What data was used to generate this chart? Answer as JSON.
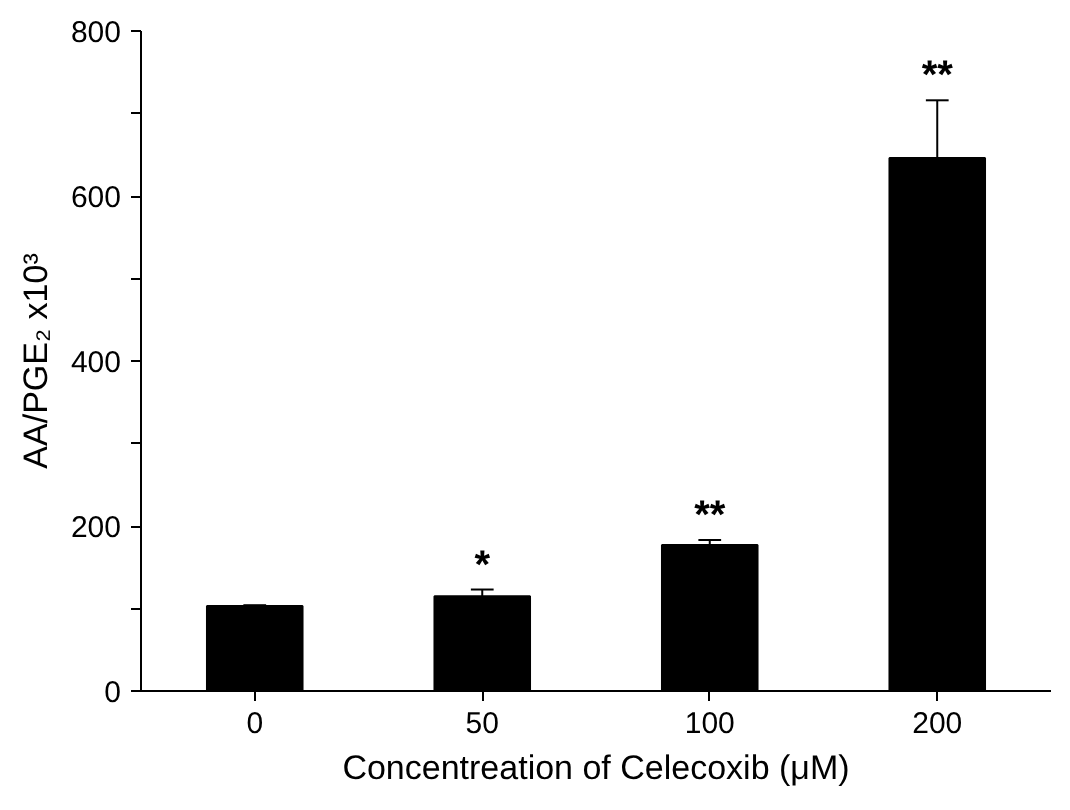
{
  "chart_data": {
    "type": "bar",
    "xlabel": "Concentreation of Celecoxib (μM)",
    "ylabel": "AA/PGE₂ x10³",
    "categories": [
      "0",
      "50",
      "100",
      "200"
    ],
    "values": [
      103,
      115,
      177,
      646
    ],
    "errors": [
      [
        103,
        104
      ],
      [
        115,
        123
      ],
      [
        177,
        183
      ],
      [
        646,
        716
      ]
    ],
    "color": "#000000",
    "ylim": [
      0,
      800
    ],
    "yticks": [
      0,
      {
        "value": 100,
        "label": null
      },
      200,
      {
        "value": 300,
        "label": null
      },
      400,
      {
        "value": 500,
        "label": null
      },
      600,
      {
        "value": 700,
        "label": null
      },
      800
    ],
    "annotations": [
      {
        "text": "*",
        "x": "50",
        "y": 123
      },
      {
        "text": "**",
        "x": "100",
        "y": 183
      },
      {
        "text": "**",
        "x": "200",
        "y": 716
      }
    ],
    "grid": false
  }
}
